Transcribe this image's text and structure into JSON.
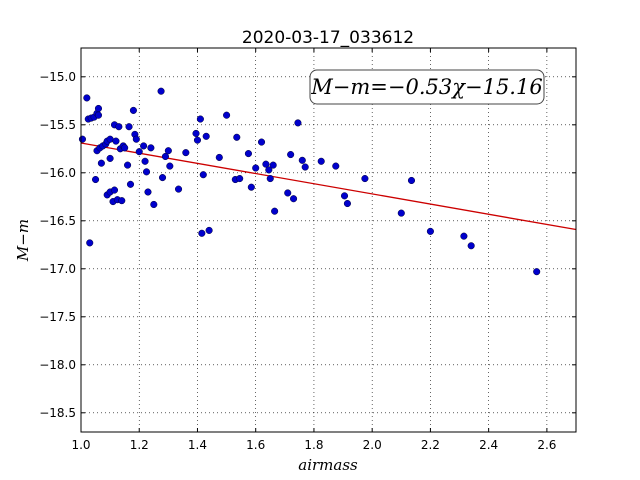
{
  "chart_data": {
    "type": "scatter",
    "title": "2020-03-17_033612",
    "xlabel": "airmass",
    "ylabel": "M−m",
    "xlim": [
      1.0,
      2.7
    ],
    "ylim": [
      -18.7,
      -14.7
    ],
    "xticks": [
      "1.0",
      "1.2",
      "1.4",
      "1.6",
      "1.8",
      "2.0",
      "2.2",
      "2.4",
      "2.6"
    ],
    "yticks": [
      "−15.0",
      "−15.5",
      "−16.0",
      "−16.5",
      "−17.0",
      "−17.5",
      "−18.0",
      "−18.5"
    ],
    "grid": true,
    "annotation": "M−m=−0.53χ−15.16",
    "fit": {
      "slope": -0.53,
      "intercept": -15.16,
      "color": "#cc0000"
    },
    "point_color": "#0000cc",
    "points": [
      [
        1.005,
        -15.65
      ],
      [
        1.02,
        -15.22
      ],
      [
        1.025,
        -15.44
      ],
      [
        1.035,
        -15.43
      ],
      [
        1.045,
        -15.42
      ],
      [
        1.055,
        -15.38
      ],
      [
        1.06,
        -15.33
      ],
      [
        1.06,
        -15.4
      ],
      [
        1.03,
        -16.73
      ],
      [
        1.05,
        -16.07
      ],
      [
        1.055,
        -15.77
      ],
      [
        1.065,
        -15.74
      ],
      [
        1.07,
        -15.9
      ],
      [
        1.075,
        -15.72
      ],
      [
        1.085,
        -15.7
      ],
      [
        1.09,
        -15.67
      ],
      [
        1.1,
        -15.65
      ],
      [
        1.1,
        -15.85
      ],
      [
        1.115,
        -15.5
      ],
      [
        1.12,
        -15.67
      ],
      [
        1.13,
        -15.52
      ],
      [
        1.135,
        -15.75
      ],
      [
        1.145,
        -15.72
      ],
      [
        1.15,
        -15.74
      ],
      [
        1.16,
        -15.92
      ],
      [
        1.165,
        -15.52
      ],
      [
        1.09,
        -16.23
      ],
      [
        1.1,
        -16.2
      ],
      [
        1.11,
        -16.3
      ],
      [
        1.115,
        -16.18
      ],
      [
        1.125,
        -16.28
      ],
      [
        1.14,
        -16.29
      ],
      [
        1.17,
        -16.12
      ],
      [
        1.18,
        -15.35
      ],
      [
        1.185,
        -15.6
      ],
      [
        1.19,
        -15.65
      ],
      [
        1.2,
        -15.78
      ],
      [
        1.215,
        -15.72
      ],
      [
        1.22,
        -15.88
      ],
      [
        1.225,
        -15.99
      ],
      [
        1.23,
        -16.2
      ],
      [
        1.24,
        -15.74
      ],
      [
        1.25,
        -16.33
      ],
      [
        1.275,
        -15.15
      ],
      [
        1.28,
        -16.05
      ],
      [
        1.29,
        -15.83
      ],
      [
        1.3,
        -15.77
      ],
      [
        1.305,
        -15.93
      ],
      [
        1.335,
        -16.17
      ],
      [
        1.36,
        -15.79
      ],
      [
        1.395,
        -15.59
      ],
      [
        1.4,
        -15.66
      ],
      [
        1.41,
        -15.44
      ],
      [
        1.415,
        -16.63
      ],
      [
        1.42,
        -16.02
      ],
      [
        1.43,
        -15.62
      ],
      [
        1.44,
        -16.6
      ],
      [
        1.475,
        -15.84
      ],
      [
        1.5,
        -15.4
      ],
      [
        1.53,
        -16.07
      ],
      [
        1.535,
        -15.63
      ],
      [
        1.545,
        -16.06
      ],
      [
        1.575,
        -15.8
      ],
      [
        1.585,
        -16.15
      ],
      [
        1.6,
        -15.95
      ],
      [
        1.62,
        -15.68
      ],
      [
        1.635,
        -15.91
      ],
      [
        1.645,
        -15.97
      ],
      [
        1.65,
        -16.06
      ],
      [
        1.66,
        -15.92
      ],
      [
        1.665,
        -16.4
      ],
      [
        1.71,
        -16.21
      ],
      [
        1.72,
        -15.81
      ],
      [
        1.73,
        -16.27
      ],
      [
        1.745,
        -15.48
      ],
      [
        1.76,
        -15.87
      ],
      [
        1.77,
        -15.94
      ],
      [
        1.825,
        -15.88
      ],
      [
        1.875,
        -15.93
      ],
      [
        1.905,
        -16.24
      ],
      [
        1.915,
        -16.32
      ],
      [
        1.975,
        -16.06
      ],
      [
        2.1,
        -16.42
      ],
      [
        2.135,
        -16.08
      ],
      [
        2.2,
        -16.61
      ],
      [
        2.315,
        -16.66
      ],
      [
        2.34,
        -16.76
      ],
      [
        2.565,
        -17.03
      ]
    ]
  }
}
